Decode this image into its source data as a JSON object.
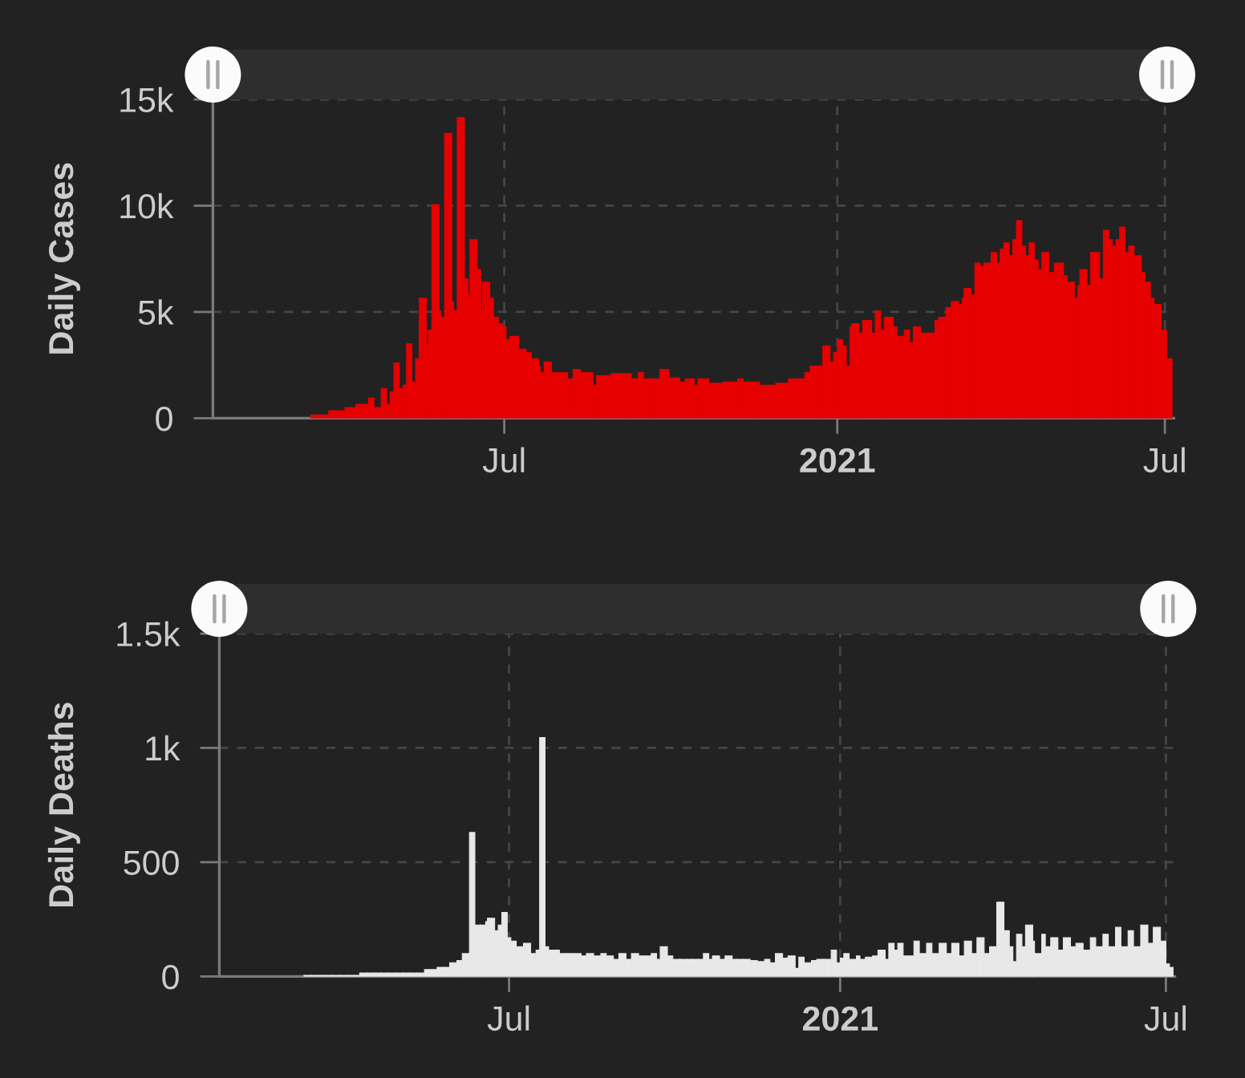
{
  "chart_data": [
    {
      "type": "bar",
      "ylabel": "Daily Cases",
      "color": "#e60000",
      "grid": true,
      "xlim": [
        "2020-01-22",
        "2021-07-06"
      ],
      "xticks": [
        {
          "value": "2020-07-01",
          "label": "Jul"
        },
        {
          "value": "2021-01-01",
          "label": "2021"
        },
        {
          "value": "2021-07-01",
          "label": "Jul"
        }
      ],
      "ylim": [
        0,
        15000
      ],
      "yticks": [
        0,
        {
          "value": 5000,
          "label": "5k"
        },
        {
          "value": 10000,
          "label": "10k"
        },
        {
          "value": 15000,
          "label": "15k"
        }
      ],
      "x": [
        "2020-03-16",
        "2020-03-20",
        "2020-03-23",
        "2020-03-26",
        "2020-03-29",
        "2020-04-01",
        "2020-04-04",
        "2020-04-07",
        "2020-04-10",
        "2020-04-14",
        "2020-04-17",
        "2020-04-20",
        "2020-04-24",
        "2020-04-27",
        "2020-04-29",
        "2020-05-01",
        "2020-05-04",
        "2020-05-06",
        "2020-05-08",
        "2020-05-11",
        "2020-05-13",
        "2020-05-15",
        "2020-05-19",
        "2020-05-20",
        "2020-05-22",
        "2020-05-26",
        "2020-05-27",
        "2020-05-29",
        "2020-06-02",
        "2020-06-03",
        "2020-06-05",
        "2020-06-09",
        "2020-06-11",
        "2020-06-12",
        "2020-06-16",
        "2020-06-18",
        "2020-06-19",
        "2020-06-23",
        "2020-06-25",
        "2020-06-28",
        "2020-06-30",
        "2020-07-02",
        "2020-07-04",
        "2020-07-09",
        "2020-07-13",
        "2020-07-16",
        "2020-07-20",
        "2020-07-21",
        "2020-07-23",
        "2020-07-27",
        "2020-07-30",
        "2020-08-02",
        "2020-08-05",
        "2020-08-08",
        "2020-08-12",
        "2020-08-16",
        "2020-08-19",
        "2020-08-21",
        "2020-08-25",
        "2020-08-29",
        "2020-09-02",
        "2020-09-06",
        "2020-09-09",
        "2020-09-13",
        "2020-09-16",
        "2020-09-19",
        "2020-09-22",
        "2020-09-25",
        "2020-09-30",
        "2020-10-03",
        "2020-10-06",
        "2020-10-09",
        "2020-10-14",
        "2020-10-16",
        "2020-10-19",
        "2020-10-22",
        "2020-10-26",
        "2020-10-30",
        "2020-11-03",
        "2020-11-07",
        "2020-11-10",
        "2020-11-13",
        "2020-11-16",
        "2020-11-19",
        "2020-11-22",
        "2020-11-25",
        "2020-11-28",
        "2020-12-02",
        "2020-12-05",
        "2020-12-08",
        "2020-12-11",
        "2020-12-14",
        "2020-12-17",
        "2020-12-21",
        "2020-12-24",
        "2020-12-28",
        "2020-12-30",
        "2021-01-01",
        "2021-01-04",
        "2021-01-06",
        "2021-01-08",
        "2021-01-09",
        "2021-01-13",
        "2021-01-15",
        "2021-01-20",
        "2021-01-22",
        "2021-01-25",
        "2021-01-27",
        "2021-02-01",
        "2021-02-03",
        "2021-02-07",
        "2021-02-10",
        "2021-02-12",
        "2021-02-16",
        "2021-02-20",
        "2021-02-24",
        "2021-02-26",
        "2021-03-02",
        "2021-03-05",
        "2021-03-09",
        "2021-03-11",
        "2021-03-12",
        "2021-03-16",
        "2021-03-18",
        "2021-03-21",
        "2021-03-23",
        "2021-03-27",
        "2021-03-30",
        "2021-04-01",
        "2021-04-03",
        "2021-04-06",
        "2021-04-08",
        "2021-04-10",
        "2021-04-13",
        "2021-04-15",
        "2021-04-17",
        "2021-04-20",
        "2021-04-22",
        "2021-04-24",
        "2021-04-28",
        "2021-05-01",
        "2021-05-06",
        "2021-05-08",
        "2021-05-12",
        "2021-05-14",
        "2021-05-15",
        "2021-05-19",
        "2021-05-21",
        "2021-05-26",
        "2021-05-28",
        "2021-05-31",
        "2021-06-02",
        "2021-06-04",
        "2021-06-06",
        "2021-06-09",
        "2021-06-11",
        "2021-06-14",
        "2021-06-18",
        "2021-06-20",
        "2021-06-23",
        "2021-06-25",
        "2021-06-29",
        "2021-07-02"
      ],
      "values": [
        150,
        150,
        150,
        350,
        350,
        350,
        500,
        500,
        650,
        650,
        950,
        500,
        1400,
        650,
        1250,
        2600,
        1400,
        1550,
        3500,
        1700,
        2800,
        5650,
        3500,
        4150,
        10050,
        5050,
        4750,
        13400,
        5500,
        5050,
        14150,
        6550,
        5800,
        8400,
        7000,
        5050,
        6400,
        5650,
        4750,
        4450,
        4300,
        3700,
        3850,
        3250,
        3100,
        2800,
        2450,
        2150,
        2650,
        2150,
        2150,
        2150,
        1850,
        2300,
        2150,
        2150,
        1550,
        2000,
        2000,
        2100,
        2100,
        2100,
        1850,
        2150,
        1850,
        1850,
        1850,
        2300,
        1900,
        1900,
        1700,
        1850,
        1550,
        1850,
        1850,
        1650,
        1650,
        1700,
        1700,
        1850,
        1700,
        1700,
        1700,
        1550,
        1550,
        1550,
        1650,
        1650,
        1850,
        1850,
        1850,
        2150,
        2450,
        2450,
        3400,
        2650,
        3100,
        3700,
        3400,
        2450,
        4300,
        4450,
        4000,
        4600,
        4000,
        5050,
        4150,
        4750,
        4300,
        3850,
        4150,
        3550,
        4300,
        4000,
        4000,
        4600,
        4750,
        5200,
        5500,
        5350,
        5650,
        6100,
        5800,
        7300,
        7150,
        7300,
        7800,
        7300,
        7950,
        8250,
        7650,
        8400,
        9300,
        8100,
        7650,
        8250,
        7450,
        7000,
        7800,
        6850,
        7300,
        6700,
        6400,
        5650,
        6250,
        7000,
        6250,
        7800,
        6550,
        8850,
        8400,
        8100,
        8400,
        9000,
        7800,
        8100,
        7650,
        6850,
        6400,
        5650,
        5350,
        4150,
        2800
      ]
    },
    {
      "type": "bar",
      "ylabel": "Daily Deaths",
      "color": "#e8e8e8",
      "grid": true,
      "xlim": [
        "2020-01-22",
        "2021-07-06"
      ],
      "xticks": [
        {
          "value": "2020-07-01",
          "label": "Jul"
        },
        {
          "value": "2021-01-01",
          "label": "2021"
        },
        {
          "value": "2021-07-01",
          "label": "Jul"
        }
      ],
      "ylim": [
        0,
        1500
      ],
      "yticks": [
        0,
        500,
        {
          "value": 1000,
          "label": "1k"
        },
        {
          "value": 1500,
          "label": "1.5k"
        }
      ],
      "x": [
        "2020-03-09",
        "2020-03-13",
        "2020-03-17",
        "2020-03-21",
        "2020-03-25",
        "2020-03-29",
        "2020-04-02",
        "2020-04-06",
        "2020-04-09",
        "2020-04-13",
        "2020-04-17",
        "2020-04-21",
        "2020-04-25",
        "2020-04-29",
        "2020-05-03",
        "2020-05-07",
        "2020-05-11",
        "2020-05-15",
        "2020-05-19",
        "2020-05-22",
        "2020-05-26",
        "2020-05-29",
        "2020-06-02",
        "2020-06-05",
        "2020-06-09",
        "2020-06-12",
        "2020-06-15",
        "2020-06-18",
        "2020-06-19",
        "2020-06-23",
        "2020-06-25",
        "2020-06-27",
        "2020-06-30",
        "2020-07-02",
        "2020-07-05",
        "2020-07-09",
        "2020-07-13",
        "2020-07-16",
        "2020-07-18",
        "2020-07-21",
        "2020-07-23",
        "2020-07-26",
        "2020-07-29",
        "2020-08-02",
        "2020-08-06",
        "2020-08-10",
        "2020-08-13",
        "2020-08-17",
        "2020-08-21",
        "2020-08-24",
        "2020-08-28",
        "2020-08-31",
        "2020-09-04",
        "2020-09-07",
        "2020-09-11",
        "2020-09-15",
        "2020-09-18",
        "2020-09-21",
        "2020-09-23",
        "2020-09-27",
        "2020-09-30",
        "2020-10-04",
        "2020-10-08",
        "2020-10-11",
        "2020-10-14",
        "2020-10-17",
        "2020-10-20",
        "2020-10-22",
        "2020-10-26",
        "2020-10-29",
        "2020-11-02",
        "2020-11-05",
        "2020-11-08",
        "2020-11-12",
        "2020-11-16",
        "2020-11-20",
        "2020-11-23",
        "2020-11-26",
        "2020-11-30",
        "2020-12-03",
        "2020-12-07",
        "2020-12-09",
        "2020-12-12",
        "2020-12-16",
        "2020-12-19",
        "2020-12-23",
        "2020-12-27",
        "2020-12-30",
        "2021-01-01",
        "2021-01-03",
        "2021-01-06",
        "2021-01-10",
        "2021-01-12",
        "2021-01-15",
        "2021-01-19",
        "2021-01-22",
        "2021-01-26",
        "2021-01-28",
        "2021-01-31",
        "2021-02-02",
        "2021-02-05",
        "2021-02-08",
        "2021-02-11",
        "2021-02-14",
        "2021-02-18",
        "2021-02-21",
        "2021-02-25",
        "2021-03-01",
        "2021-03-04",
        "2021-03-08",
        "2021-03-11",
        "2021-03-15",
        "2021-03-18",
        "2021-03-22",
        "2021-03-25",
        "2021-03-29",
        "2021-04-02",
        "2021-04-05",
        "2021-04-07",
        "2021-04-09",
        "2021-04-12",
        "2021-04-14",
        "2021-04-18",
        "2021-04-19",
        "2021-04-23",
        "2021-04-25",
        "2021-04-28",
        "2021-05-02",
        "2021-05-05",
        "2021-05-09",
        "2021-05-12",
        "2021-05-16",
        "2021-05-20",
        "2021-05-23",
        "2021-05-27",
        "2021-05-30",
        "2021-06-03",
        "2021-06-06",
        "2021-06-10",
        "2021-06-13",
        "2021-06-17",
        "2021-06-21",
        "2021-06-24",
        "2021-06-28",
        "2021-07-01",
        "2021-07-03"
      ],
      "values": [
        5,
        5,
        5,
        5,
        5,
        5,
        5,
        5,
        15,
        15,
        15,
        15,
        15,
        15,
        15,
        15,
        15,
        30,
        30,
        40,
        40,
        60,
        70,
        100,
        630,
        225,
        225,
        240,
        255,
        200,
        225,
        280,
        170,
        155,
        130,
        145,
        100,
        115,
        1045,
        130,
        115,
        115,
        100,
        100,
        100,
        90,
        100,
        90,
        100,
        90,
        75,
        100,
        75,
        100,
        90,
        90,
        100,
        75,
        130,
        90,
        75,
        75,
        75,
        75,
        75,
        100,
        75,
        90,
        75,
        90,
        75,
        75,
        75,
        70,
        65,
        75,
        60,
        100,
        80,
        90,
        35,
        85,
        60,
        70,
        75,
        75,
        115,
        60,
        80,
        100,
        75,
        90,
        75,
        85,
        90,
        115,
        75,
        145,
        115,
        145,
        90,
        90,
        155,
        100,
        145,
        100,
        145,
        100,
        145,
        90,
        155,
        100,
        170,
        100,
        130,
        325,
        200,
        130,
        65,
        185,
        130,
        225,
        155,
        100,
        185,
        130,
        170,
        115,
        170,
        130,
        145,
        115,
        170,
        130,
        185,
        130,
        215,
        130,
        200,
        130,
        225,
        145,
        215,
        155,
        55,
        40
      ]
    }
  ]
}
